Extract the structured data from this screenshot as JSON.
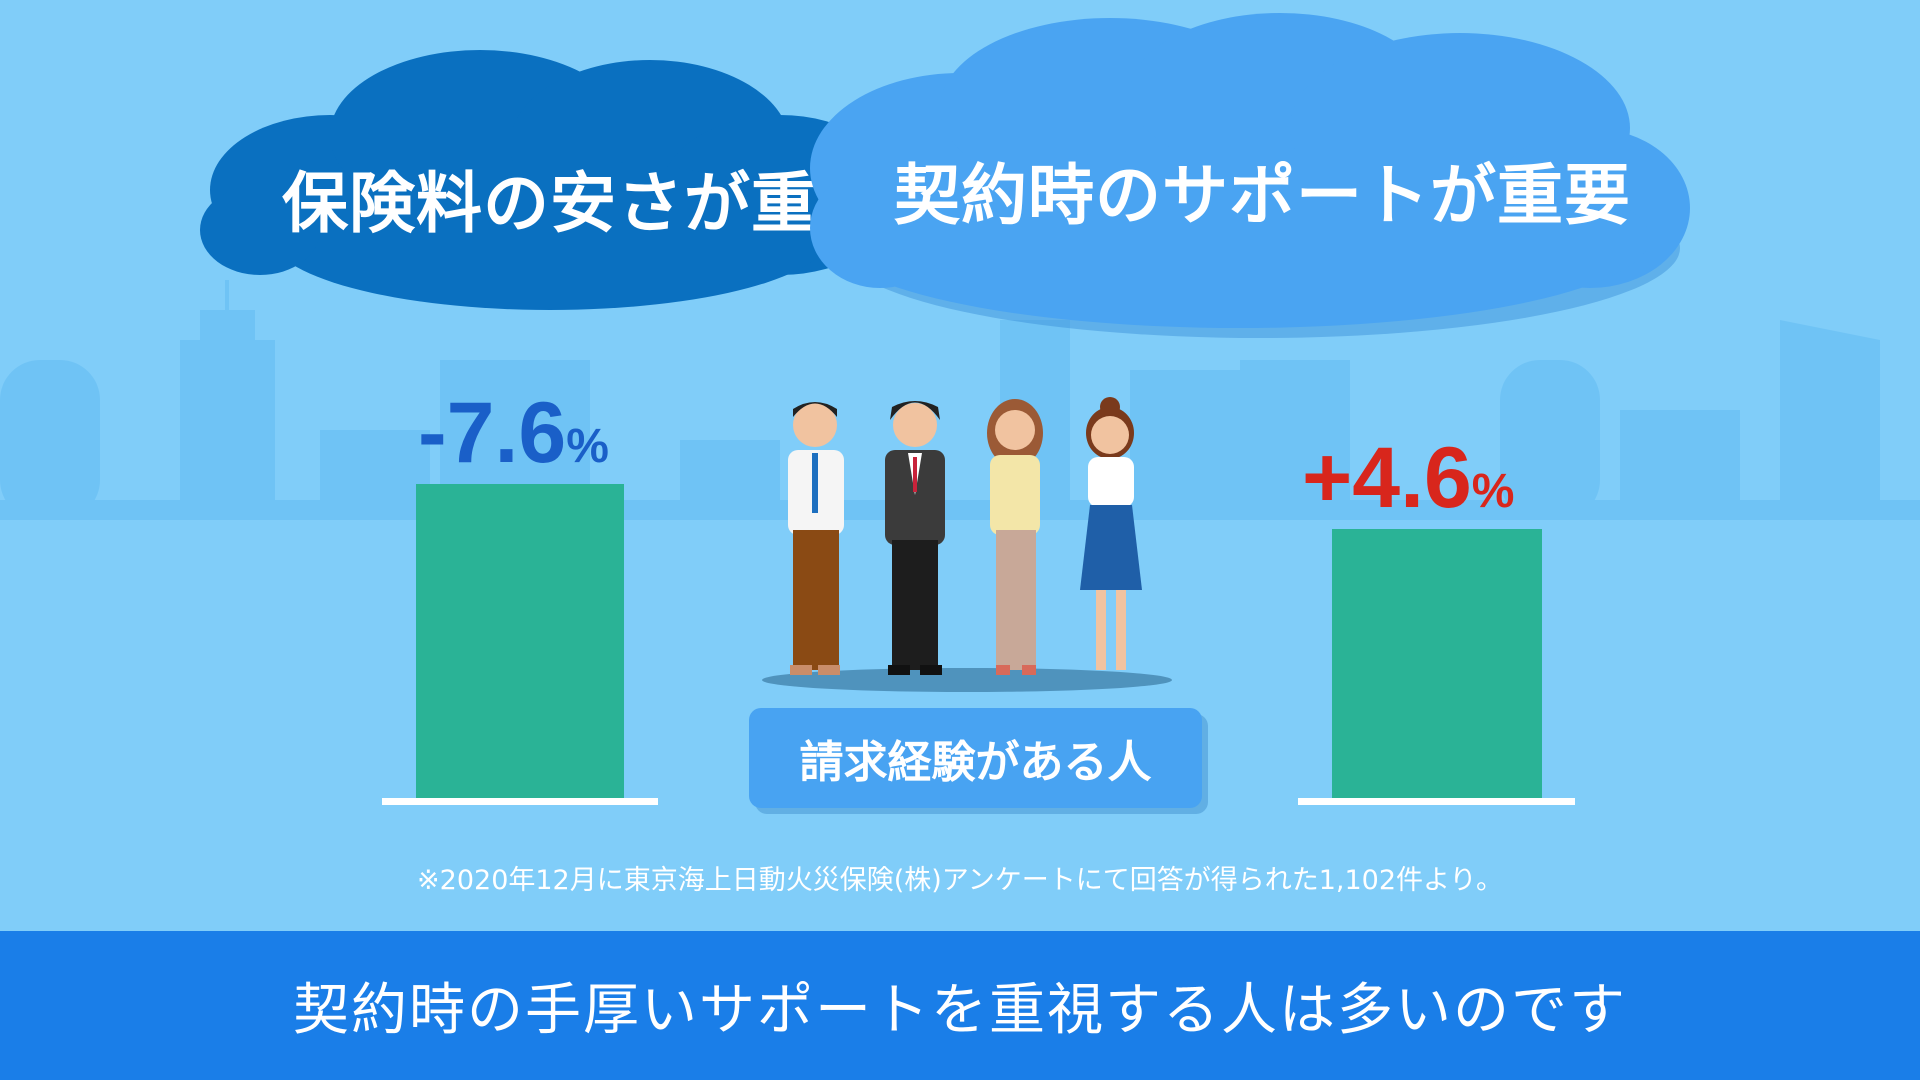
{
  "clouds": {
    "left_text": "保険料の安さが重要",
    "right_text": "契約時のサポートが重要",
    "left_color": "#0a70c0",
    "right_color": "#4aa4f2"
  },
  "chart_data": {
    "type": "bar",
    "categories": [
      "保険料の安さが重要",
      "契約時のサポートが重要"
    ],
    "values": [
      -7.6,
      4.6
    ],
    "labels": [
      {
        "sign": "-",
        "num": "7.6",
        "unit": "%"
      },
      {
        "sign": "+",
        "num": "4.6",
        "unit": "%"
      }
    ],
    "label_colors": [
      "#1a5fc8",
      "#d8261c"
    ],
    "bar_color": "#2ab396",
    "group": "請求経験がある人"
  },
  "people": {
    "icon": "four-people-illustration"
  },
  "footnote": "※2020年12月に東京海上日動火災保険(株)アンケートにて回答が得られた1,102件より。",
  "caption": "契約時の手厚いサポートを重視する人は多いのです"
}
